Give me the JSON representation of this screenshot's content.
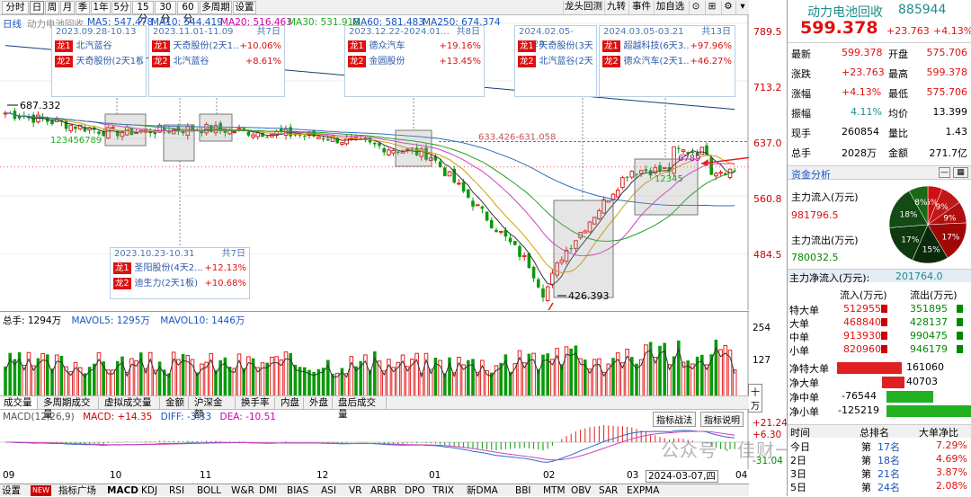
{
  "toolbar": {
    "left": [
      "分时",
      "日",
      "周",
      "月",
      "季",
      "1年",
      "5分",
      "15分",
      "30分",
      "60分",
      "多周期",
      "设置"
    ],
    "right": [
      "龙头回测",
      "九转",
      "事件",
      "加自选"
    ],
    "icons": [
      "⊙",
      "⊞",
      "⚙",
      "▾"
    ]
  },
  "legend": {
    "period": "日线",
    "name": "动力电池回收",
    "ma5": "MA5: 547.478",
    "ma10": "MA10: 544.419",
    "ma20": "MA20: 516.463",
    "ma30": "MA30: 531.918",
    "ma60": "MA60: 581.483",
    "ma250": "MA250: 674.374"
  },
  "price_ticks": [
    "789.5",
    "713.2",
    "637.0",
    "560.8",
    "484.5"
  ],
  "price_marks": {
    "high": "687.332",
    "low": "426.393",
    "ref": "633.426-631.058"
  },
  "annotations": [
    {
      "date": "2023.09.28-10.13",
      "days": "",
      "rows": [
        {
          "tag": "龙1",
          "name": "北汽蓝谷",
          "pct": ""
        },
        {
          "tag": "龙2",
          "name": "天奇股份(2天1板)",
          "pct": ""
        }
      ]
    },
    {
      "date": "2023.11.01-11.09",
      "days": "共7日",
      "rows": [
        {
          "tag": "龙1",
          "name": "天奇股份(2天1...",
          "pct": "+10.06%"
        },
        {
          "tag": "龙2",
          "name": "北汽蓝谷",
          "pct": "+8.61%"
        }
      ]
    },
    {
      "date": "2023.12.22-2024.01...",
      "days": "共8日",
      "rows": [
        {
          "tag": "龙1",
          "name": "德众汽车",
          "pct": "+19.16%"
        },
        {
          "tag": "龙2",
          "name": "金圆股份",
          "pct": "+13.45%"
        }
      ]
    },
    {
      "date": "2024.02.05-02.28",
      "days": "",
      "rows": [
        {
          "tag": "龙1",
          "name": "天奇股份(3天...",
          "pct": ""
        },
        {
          "tag": "龙2",
          "name": "北汽蓝谷(2天...",
          "pct": ""
        }
      ]
    },
    {
      "date": "2024.03.05-03.21",
      "days": "共13日",
      "rows": [
        {
          "tag": "龙1",
          "name": "超越科技(6天3...",
          "pct": "+97.96%"
        },
        {
          "tag": "龙2",
          "name": "德众汽车(2天1...",
          "pct": "+46.27%"
        }
      ]
    },
    {
      "date": "2023.10.23-10.31",
      "days": "共7日",
      "rows": [
        {
          "tag": "龙1",
          "name": "圣阳股份(4天2...",
          "pct": "+12.13%"
        },
        {
          "tag": "龙2",
          "name": "迪生力(2天1板)",
          "pct": "+10.68%"
        }
      ]
    }
  ],
  "nine_turn": {
    "down": "123456789",
    "up1": "6789",
    "up2": "12345"
  },
  "volume": {
    "label": "总手: 1294万",
    "mavol5": "MAVOL5: 1295万",
    "mavol10": "MAVOL10: 1446万",
    "ticks": [
      "254",
      "127"
    ],
    "unit": "十万"
  },
  "subtabs": [
    "成交量",
    "多周期成交量",
    "虚拟成交量",
    "金额",
    "沪深金额",
    "换手率",
    "内盘",
    "外盘",
    "盘后成交量"
  ],
  "macd": {
    "label": "MACD(12,26,9)",
    "macd": "MACD: +14.35",
    "diff": "DIFF: -3.33",
    "dea": "DEA: -10.51",
    "ticks": [
      "+21.24",
      "+6.30",
      "-31.04"
    ],
    "btn1": "指标战法",
    "btn2": "指标说明"
  },
  "months": [
    "09",
    "10",
    "11",
    "12",
    "01",
    "02",
    "03",
    "04"
  ],
  "cursor_date": "2024-03-07,四",
  "bottom_tabs": [
    "设置",
    "NEW",
    "指标广场",
    "MACD",
    "KDJ",
    "RSI",
    "BOLL",
    "W&R",
    "DMI",
    "BIAS",
    "ASI",
    "VR",
    "ARBR",
    "DPO",
    "TRIX",
    "新DMA",
    "BBI",
    "MTM",
    "OBV",
    "SAR",
    "EXPMA"
  ],
  "quote": {
    "name": "动力电池回收",
    "code": "885944",
    "price": "599.378",
    "change": "+23.763",
    "pct": "+4.13%",
    "rows": [
      [
        "最新",
        "599.378",
        "开盘",
        "575.706"
      ],
      [
        "涨跌",
        "+23.763",
        "最高",
        "599.378"
      ],
      [
        "涨幅",
        "+4.13%",
        "最低",
        "575.706"
      ],
      [
        "振幅",
        "4.11%",
        "均价",
        "13.399"
      ],
      [
        "现手",
        "260854",
        "量比",
        "1.43"
      ],
      [
        "总手",
        "2028万",
        "金额",
        "271.7亿"
      ]
    ]
  },
  "fund": {
    "title": "资金分析",
    "inflow_label": "主力流入(万元)",
    "inflow": "981796.5",
    "outflow_label": "主力流出(万元)",
    "outflow": "780032.5",
    "net_label": "主力净流入(万元):",
    "net": "201764.0",
    "pie": [
      "6%",
      "9%",
      "9%",
      "17%",
      "15%",
      "17%",
      "18%",
      "8%"
    ],
    "table_head": [
      "流入(万元)",
      "流出(万元)"
    ],
    "table": [
      [
        "特大单",
        "512955",
        "351895"
      ],
      [
        "大单",
        "468840",
        "428137"
      ],
      [
        "中单",
        "913930",
        "990475"
      ],
      [
        "小单",
        "820960",
        "946179"
      ]
    ],
    "net_rows": [
      [
        "净特大单",
        "161060"
      ],
      [
        "净大单",
        "40703"
      ],
      [
        "净中单",
        "-76544"
      ],
      [
        "净小单",
        "-125219"
      ]
    ],
    "rank_head": [
      "时间",
      "总排名",
      "大单净比"
    ],
    "ranks": [
      [
        "今日",
        "第",
        "17名",
        "7.29%"
      ],
      [
        "2日",
        "第",
        "18名",
        "4.69%"
      ],
      [
        "3日",
        "第",
        "21名",
        "3.87%"
      ],
      [
        "5日",
        "第",
        "24名",
        "2.08%"
      ]
    ]
  },
  "watermark": "公众号 · 佳财一分钟",
  "chart_data": {
    "type": "candlestick",
    "title": "动力电池回收 日线",
    "ylim": [
      426.393,
      789.5
    ],
    "price_high_mark": 687.332,
    "price_low_mark": 426.393,
    "last_close": 599.378,
    "ma": {
      "MA5": 547.478,
      "MA10": 544.419,
      "MA20": 516.463,
      "MA30": 531.918,
      "MA60": 581.483,
      "MA250": 674.374
    },
    "approx_close_by_month": [
      [
        "2023-09",
        672
      ],
      [
        "2023-10",
        645
      ],
      [
        "2023-11",
        650
      ],
      [
        "2023-12",
        640
      ],
      [
        "2024-01",
        615
      ],
      [
        "2024-02",
        450
      ],
      [
        "2024-03",
        595
      ]
    ]
  }
}
